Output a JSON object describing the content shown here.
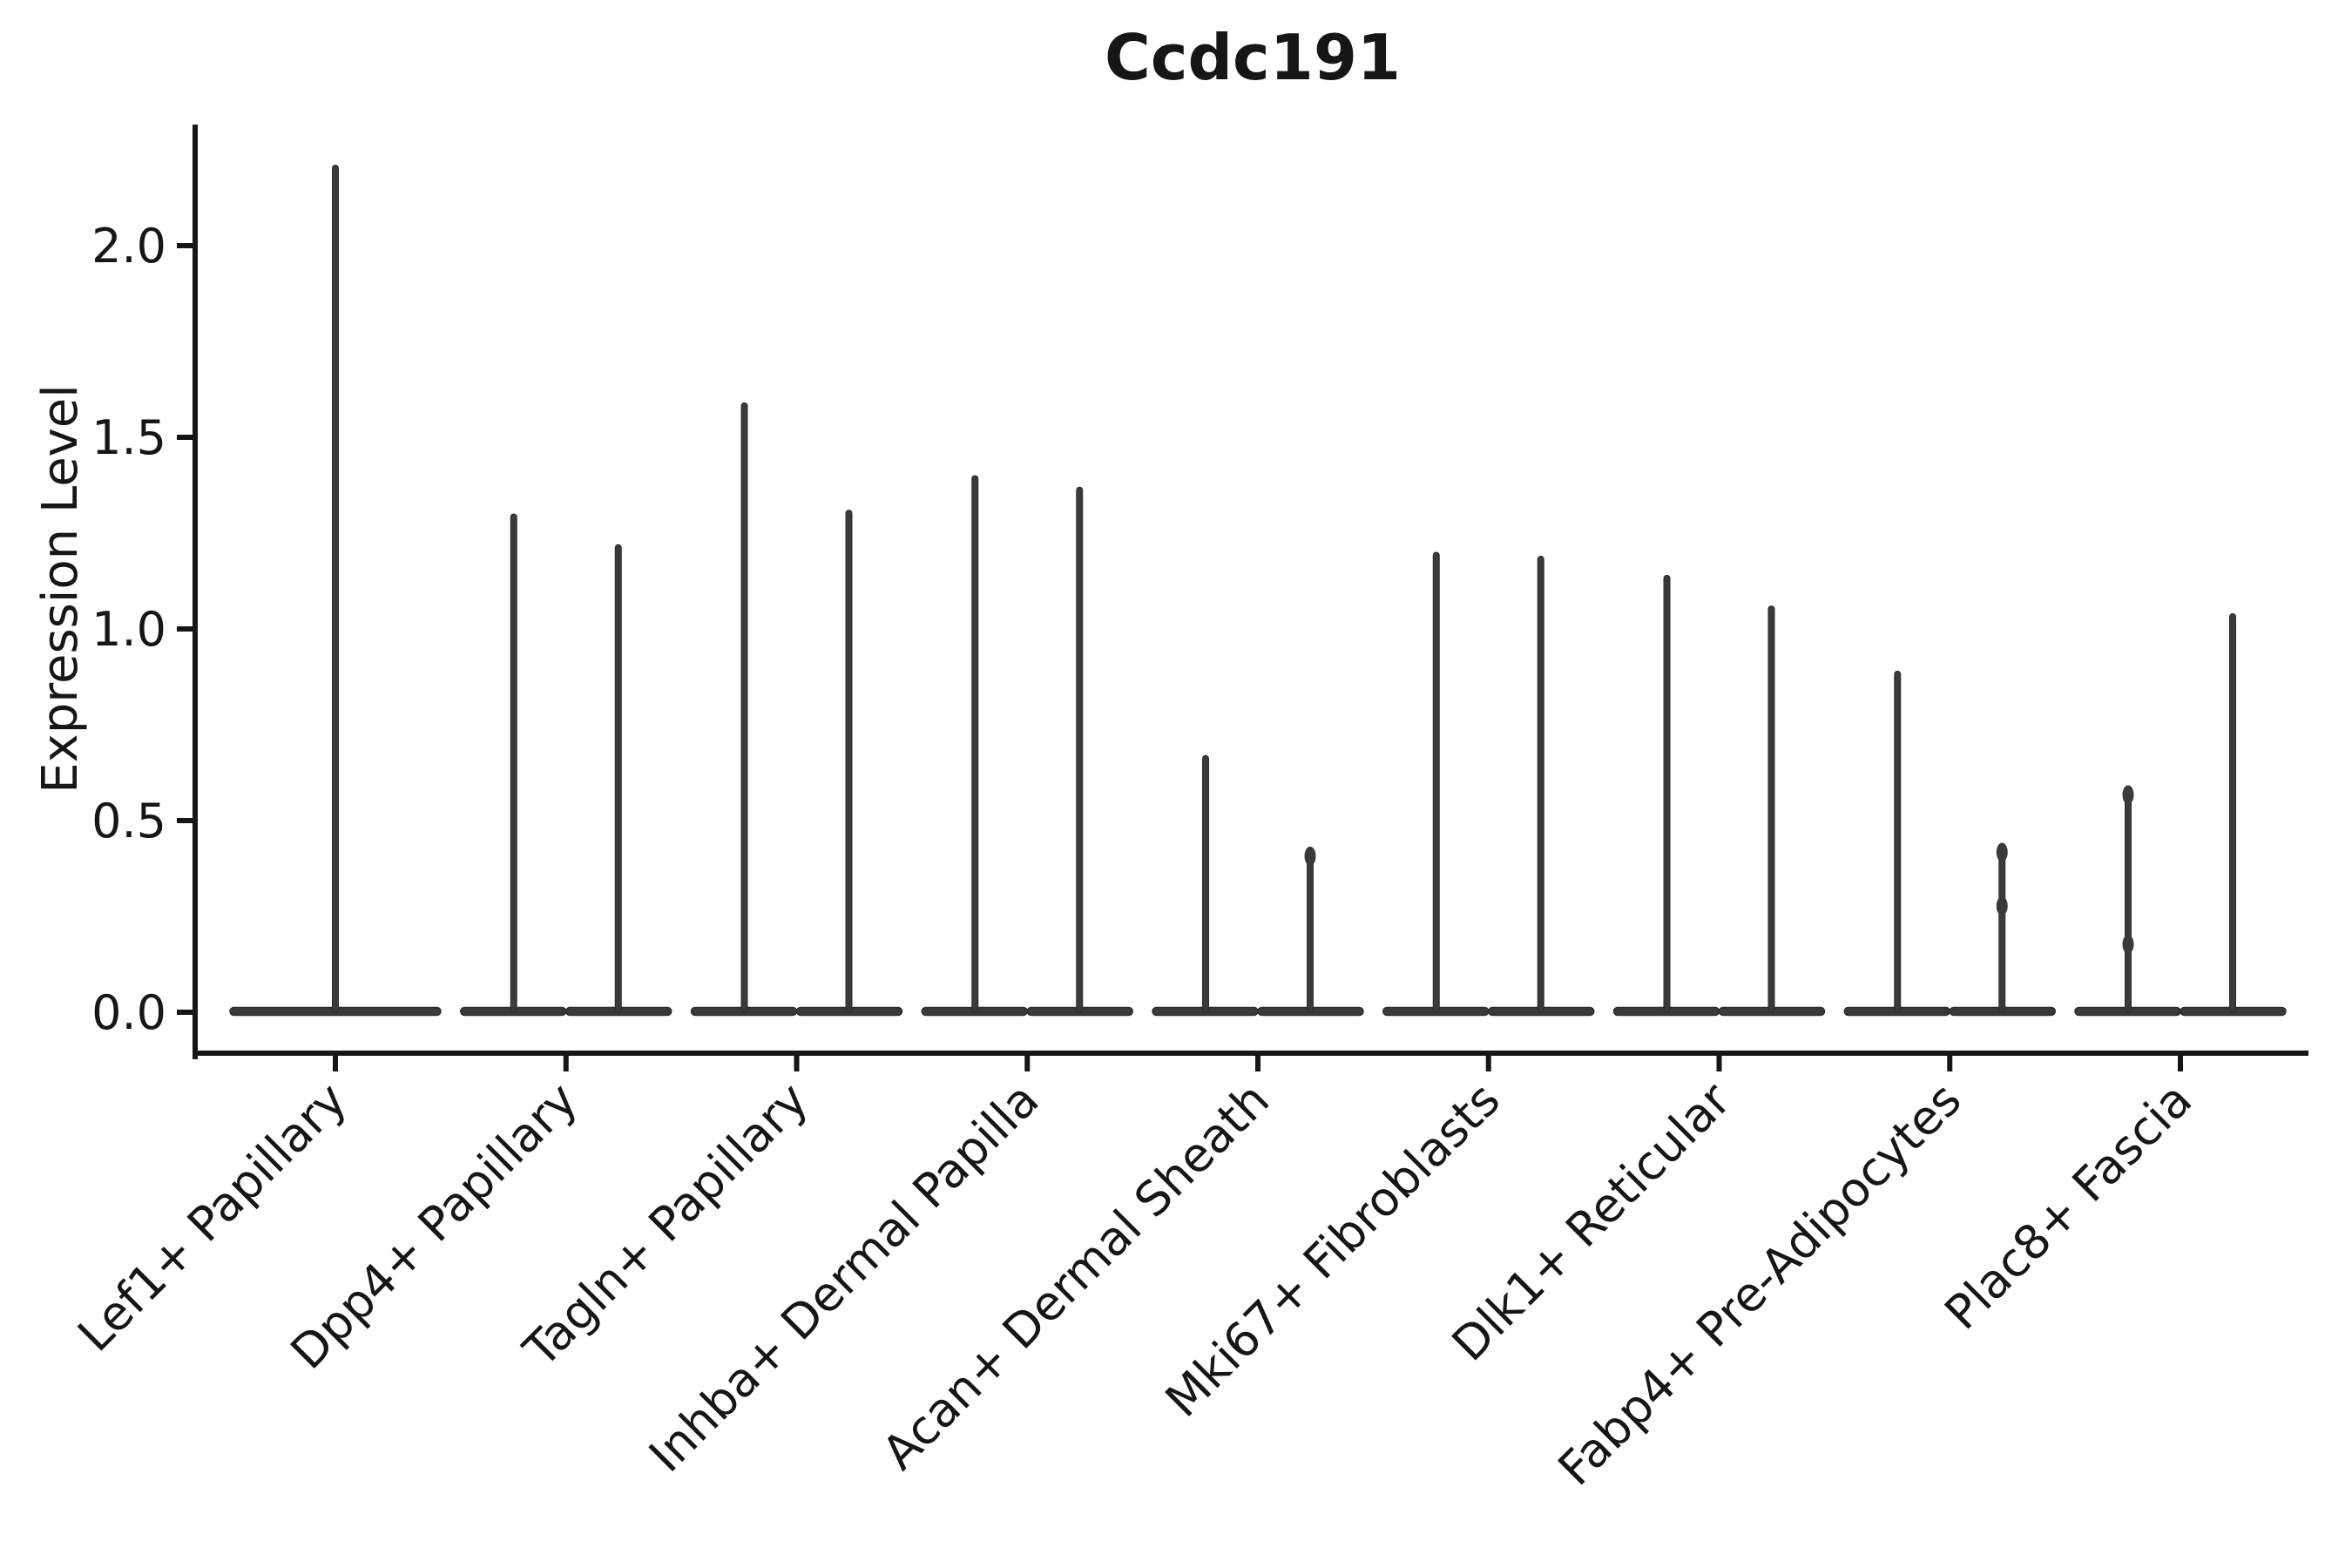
{
  "chart_data": {
    "type": "violin",
    "title": "Ccdc191",
    "ylabel": "Expression Level",
    "xlabel": "",
    "ylim": [
      -0.11,
      2.32
    ],
    "yticks": [
      "0.0",
      "0.5",
      "1.0",
      "1.5",
      "2.0"
    ],
    "ytick_values": [
      0.0,
      0.5,
      1.0,
      1.5,
      2.0
    ],
    "grid": false,
    "legend": "none",
    "categories": [
      "Lef1+ Papillary",
      "Dpp4+ Papillary",
      "Tagln+ Papillary",
      "Inhba+ Dermal Papilla",
      "Acan+ Dermal Sheath",
      "Mki67+ Fibroblasts",
      "Dlk1+ Reticular",
      "Fabp4+ Pre-Adipocytes",
      "Plac8+ Fascia"
    ],
    "description": "Violin plot of Ccdc191 expression; each cell type shows narrow-tailed violins whose mass sits at expression 0, with thin spikes reaching the listed maximum expression values.",
    "violins": [
      {
        "category": "Lef1+ Papillary",
        "peaks": [
          2.21
        ],
        "bulges": [
          []
        ]
      },
      {
        "category": "Dpp4+ Papillary",
        "peaks": [
          1.3,
          1.22
        ],
        "bulges": [
          [],
          []
        ]
      },
      {
        "category": "Tagln+ Papillary",
        "peaks": [
          1.59,
          1.31
        ],
        "bulges": [
          [],
          []
        ]
      },
      {
        "category": "Inhba+ Dermal Papilla",
        "peaks": [
          1.4,
          1.37
        ],
        "bulges": [
          [],
          []
        ]
      },
      {
        "category": "Acan+ Dermal Sheath",
        "peaks": [
          0.67,
          0.43
        ],
        "bulges": [
          [],
          [
            0.43
          ]
        ]
      },
      {
        "category": "Mki67+ Fibroblasts",
        "peaks": [
          1.2,
          1.19
        ],
        "bulges": [
          [],
          []
        ]
      },
      {
        "category": "Dlk1+ Reticular",
        "peaks": [
          1.14,
          1.06
        ],
        "bulges": [
          [],
          []
        ]
      },
      {
        "category": "Fabp4+ Pre-Adipocytes",
        "peaks": [
          0.89,
          0.44
        ],
        "bulges": [
          [],
          [
            0.44,
            0.3
          ]
        ]
      },
      {
        "category": "Plac8+ Fascia",
        "peaks": [
          0.59,
          1.04
        ],
        "bulges": [
          [
            0.59,
            0.2
          ],
          []
        ]
      }
    ],
    "style": {
      "ink": "#161616",
      "violin_fill": "#3a3a3a",
      "violin_edge": "#2c2c2c",
      "background": "#ffffff"
    }
  }
}
